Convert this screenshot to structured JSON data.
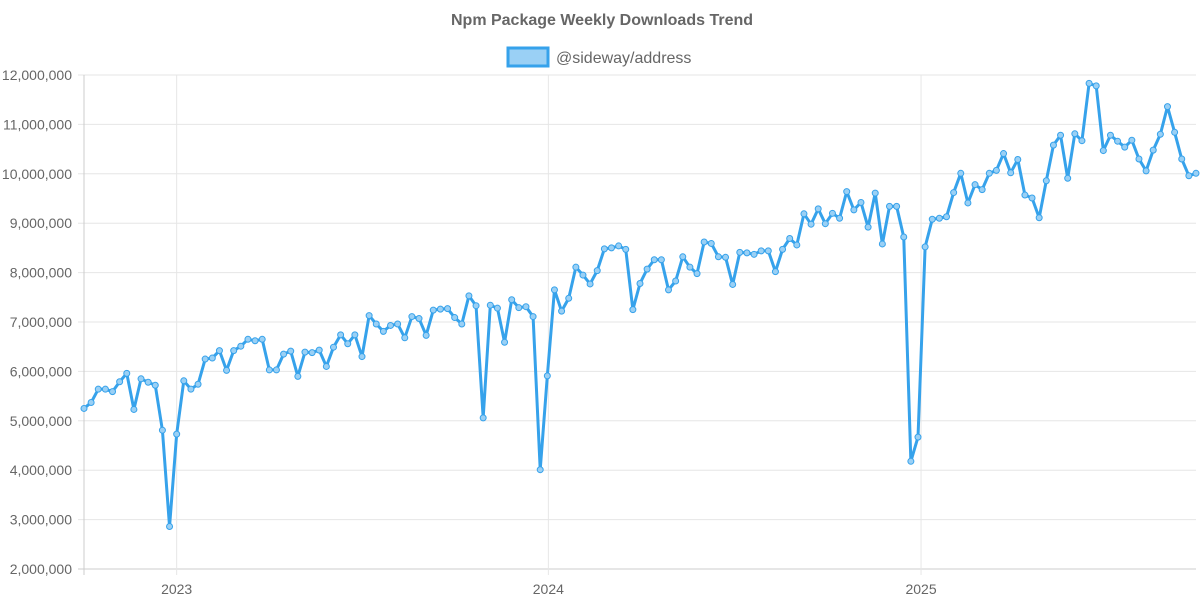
{
  "chart_data": {
    "type": "line",
    "title": "Npm Package Weekly Downloads Trend",
    "series": [
      {
        "name": "@sideway/address",
        "color": "#36a2eb",
        "fill": "#9ad0f5",
        "points": [
          [
            "2022-10-02",
            5250000
          ],
          [
            "2022-10-09",
            5370000
          ],
          [
            "2022-10-16",
            5640000
          ],
          [
            "2022-10-23",
            5640000
          ],
          [
            "2022-10-30",
            5590000
          ],
          [
            "2022-11-06",
            5790000
          ],
          [
            "2022-11-13",
            5960000
          ],
          [
            "2022-11-20",
            5230000
          ],
          [
            "2022-11-27",
            5850000
          ],
          [
            "2022-12-04",
            5780000
          ],
          [
            "2022-12-11",
            5720000
          ],
          [
            "2022-12-18",
            4810000
          ],
          [
            "2022-12-25",
            2860000
          ],
          [
            "2023-01-01",
            4730000
          ],
          [
            "2023-01-08",
            5810000
          ],
          [
            "2023-01-15",
            5640000
          ],
          [
            "2023-01-22",
            5740000
          ],
          [
            "2023-01-29",
            6250000
          ],
          [
            "2023-02-05",
            6270000
          ],
          [
            "2023-02-12",
            6420000
          ],
          [
            "2023-02-19",
            6020000
          ],
          [
            "2023-02-26",
            6420000
          ],
          [
            "2023-03-05",
            6510000
          ],
          [
            "2023-03-12",
            6650000
          ],
          [
            "2023-03-19",
            6620000
          ],
          [
            "2023-03-26",
            6650000
          ],
          [
            "2023-04-02",
            6030000
          ],
          [
            "2023-04-09",
            6030000
          ],
          [
            "2023-04-16",
            6350000
          ],
          [
            "2023-04-23",
            6410000
          ],
          [
            "2023-04-30",
            5900000
          ],
          [
            "2023-05-07",
            6390000
          ],
          [
            "2023-05-14",
            6380000
          ],
          [
            "2023-05-21",
            6430000
          ],
          [
            "2023-05-28",
            6100000
          ],
          [
            "2023-06-04",
            6490000
          ],
          [
            "2023-06-11",
            6740000
          ],
          [
            "2023-06-18",
            6560000
          ],
          [
            "2023-06-25",
            6740000
          ],
          [
            "2023-07-02",
            6300000
          ],
          [
            "2023-07-09",
            7130000
          ],
          [
            "2023-07-16",
            6960000
          ],
          [
            "2023-07-23",
            6810000
          ],
          [
            "2023-07-30",
            6930000
          ],
          [
            "2023-08-06",
            6960000
          ],
          [
            "2023-08-13",
            6680000
          ],
          [
            "2023-08-20",
            7110000
          ],
          [
            "2023-08-27",
            7070000
          ],
          [
            "2023-09-03",
            6730000
          ],
          [
            "2023-09-10",
            7240000
          ],
          [
            "2023-09-17",
            7260000
          ],
          [
            "2023-09-24",
            7270000
          ],
          [
            "2023-10-01",
            7090000
          ],
          [
            "2023-10-08",
            6960000
          ],
          [
            "2023-10-15",
            7530000
          ],
          [
            "2023-10-22",
            7330000
          ],
          [
            "2023-10-29",
            5060000
          ],
          [
            "2023-11-05",
            7340000
          ],
          [
            "2023-11-12",
            7280000
          ],
          [
            "2023-11-19",
            6590000
          ],
          [
            "2023-11-26",
            7450000
          ],
          [
            "2023-12-03",
            7290000
          ],
          [
            "2023-12-10",
            7310000
          ],
          [
            "2023-12-17",
            7110000
          ],
          [
            "2023-12-24",
            4010000
          ],
          [
            "2023-12-31",
            5910000
          ],
          [
            "2024-01-07",
            7650000
          ],
          [
            "2024-01-14",
            7220000
          ],
          [
            "2024-01-21",
            7480000
          ],
          [
            "2024-01-28",
            8110000
          ],
          [
            "2024-02-04",
            7950000
          ],
          [
            "2024-02-11",
            7770000
          ],
          [
            "2024-02-18",
            8040000
          ],
          [
            "2024-02-25",
            8480000
          ],
          [
            "2024-03-03",
            8500000
          ],
          [
            "2024-03-10",
            8540000
          ],
          [
            "2024-03-17",
            8470000
          ],
          [
            "2024-03-24",
            7250000
          ],
          [
            "2024-03-31",
            7780000
          ],
          [
            "2024-04-07",
            8070000
          ],
          [
            "2024-04-14",
            8260000
          ],
          [
            "2024-04-21",
            8260000
          ],
          [
            "2024-04-28",
            7650000
          ],
          [
            "2024-05-05",
            7830000
          ],
          [
            "2024-05-12",
            8320000
          ],
          [
            "2024-05-19",
            8110000
          ],
          [
            "2024-05-26",
            7980000
          ],
          [
            "2024-06-02",
            8620000
          ],
          [
            "2024-06-09",
            8590000
          ],
          [
            "2024-06-16",
            8320000
          ],
          [
            "2024-06-23",
            8310000
          ],
          [
            "2024-06-30",
            7760000
          ],
          [
            "2024-07-07",
            8410000
          ],
          [
            "2024-07-14",
            8400000
          ],
          [
            "2024-07-21",
            8370000
          ],
          [
            "2024-07-28",
            8440000
          ],
          [
            "2024-08-04",
            8440000
          ],
          [
            "2024-08-11",
            8020000
          ],
          [
            "2024-08-18",
            8470000
          ],
          [
            "2024-08-25",
            8690000
          ],
          [
            "2024-09-01",
            8560000
          ],
          [
            "2024-09-08",
            9190000
          ],
          [
            "2024-09-15",
            8980000
          ],
          [
            "2024-09-22",
            9290000
          ],
          [
            "2024-09-29",
            8990000
          ],
          [
            "2024-10-06",
            9200000
          ],
          [
            "2024-10-13",
            9100000
          ],
          [
            "2024-10-20",
            9640000
          ],
          [
            "2024-10-27",
            9270000
          ],
          [
            "2024-11-03",
            9420000
          ],
          [
            "2024-11-10",
            8920000
          ],
          [
            "2024-11-17",
            9610000
          ],
          [
            "2024-11-24",
            8580000
          ],
          [
            "2024-12-01",
            9340000
          ],
          [
            "2024-12-08",
            9340000
          ],
          [
            "2024-12-15",
            8720000
          ],
          [
            "2024-12-22",
            4180000
          ],
          [
            "2024-12-29",
            4670000
          ],
          [
            "2025-01-05",
            8520000
          ],
          [
            "2025-01-12",
            9080000
          ],
          [
            "2025-01-19",
            9100000
          ],
          [
            "2025-01-26",
            9130000
          ],
          [
            "2025-02-02",
            9620000
          ],
          [
            "2025-02-09",
            10010000
          ],
          [
            "2025-02-16",
            9410000
          ],
          [
            "2025-02-23",
            9780000
          ],
          [
            "2025-03-02",
            9680000
          ],
          [
            "2025-03-09",
            10010000
          ],
          [
            "2025-03-16",
            10070000
          ],
          [
            "2025-03-23",
            10410000
          ],
          [
            "2025-03-30",
            10020000
          ],
          [
            "2025-04-06",
            10290000
          ],
          [
            "2025-04-13",
            9570000
          ],
          [
            "2025-04-20",
            9510000
          ],
          [
            "2025-04-27",
            9110000
          ],
          [
            "2025-05-04",
            9860000
          ],
          [
            "2025-05-11",
            10580000
          ],
          [
            "2025-05-18",
            10780000
          ],
          [
            "2025-05-25",
            9910000
          ],
          [
            "2025-06-01",
            10810000
          ],
          [
            "2025-06-08",
            10670000
          ],
          [
            "2025-06-15",
            11830000
          ],
          [
            "2025-06-22",
            11780000
          ],
          [
            "2025-06-29",
            10470000
          ],
          [
            "2025-07-06",
            10780000
          ],
          [
            "2025-07-13",
            10660000
          ],
          [
            "2025-07-20",
            10540000
          ],
          [
            "2025-07-27",
            10680000
          ],
          [
            "2025-08-03",
            10300000
          ],
          [
            "2025-08-10",
            10060000
          ],
          [
            "2025-08-17",
            10480000
          ],
          [
            "2025-08-24",
            10800000
          ],
          [
            "2025-08-31",
            11360000
          ],
          [
            "2025-09-07",
            10840000
          ],
          [
            "2025-09-14",
            10300000
          ],
          [
            "2025-09-21",
            9960000
          ],
          [
            "2025-09-28",
            10010000
          ]
        ]
      }
    ],
    "x_axis": {
      "type": "time",
      "range": [
        "2022-10-02",
        "2025-09-28"
      ],
      "ticks": [
        "2023-01-01",
        "2024-01-01",
        "2025-01-01"
      ],
      "tick_labels": [
        "2023",
        "2024",
        "2025"
      ]
    },
    "y_axis": {
      "range": [
        2000000,
        12000000
      ],
      "ticks": [
        2000000,
        3000000,
        4000000,
        5000000,
        6000000,
        7000000,
        8000000,
        9000000,
        10000000,
        11000000,
        12000000
      ],
      "tick_labels": [
        "2,000,000",
        "3,000,000",
        "4,000,000",
        "5,000,000",
        "6,000,000",
        "7,000,000",
        "8,000,000",
        "9,000,000",
        "10,000,000",
        "11,000,000",
        "12,000,000"
      ]
    },
    "grid": true,
    "legend_position": "top-center",
    "colors": {
      "grid": "#e6e6e6",
      "axis": "#cccccc",
      "text": "#666666"
    }
  }
}
